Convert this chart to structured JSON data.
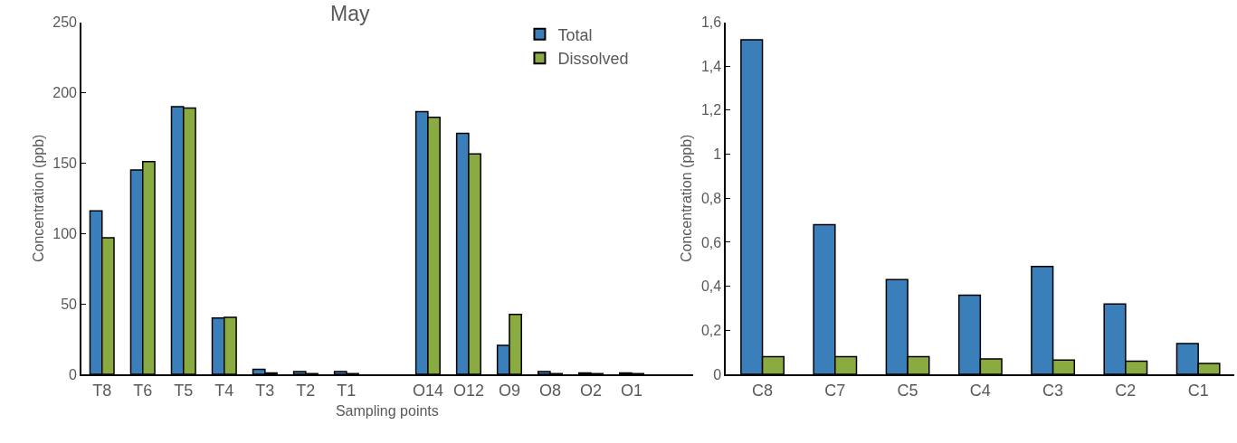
{
  "chart_data": [
    {
      "type": "bar",
      "title": "May",
      "xlabel": "Sampling points",
      "ylabel": "Concentration (ppb)",
      "categories": [
        "T8",
        "T6",
        "T5",
        "T4",
        "T3",
        "T2",
        "T1",
        null,
        "O14",
        "O12",
        "O9",
        "O8",
        "O2",
        "O1",
        null
      ],
      "series": [
        {
          "name": "Total",
          "color": "#3a7fba",
          "values": [
            116,
            145,
            190,
            40,
            3.5,
            2,
            2,
            null,
            186.5,
            171,
            20.5,
            2,
            1,
            1,
            null
          ]
        },
        {
          "name": "Dissolved",
          "color": "#8aab42",
          "values": [
            97,
            151,
            189,
            40.5,
            1,
            0.5,
            0.5,
            null,
            182.5,
            156.5,
            42.5,
            0.5,
            0.5,
            0.5,
            null
          ]
        }
      ],
      "ylim": [
        0,
        250
      ],
      "yticks": [
        0,
        50,
        100,
        150,
        200,
        250
      ],
      "legend": "top right"
    },
    {
      "type": "bar",
      "ylabel": "Concentration (ppb)",
      "categories": [
        "C8",
        "C7",
        "C5",
        "C4",
        "C3",
        "C2",
        "C1"
      ],
      "series": [
        {
          "color": "#3a7fba",
          "values": [
            1.52,
            0.68,
            0.43,
            0.36,
            0.49,
            0.32,
            0.14
          ]
        },
        {
          "color": "#8aab42",
          "values": [
            0.08,
            0.08,
            0.08,
            0.07,
            0.065,
            0.06,
            0.05
          ]
        }
      ],
      "ylim": [
        0,
        1.6
      ],
      "yticks": [
        0,
        {
          "value": 0.2,
          "label": "0,2"
        },
        {
          "value": 0.4,
          "label": "0,4"
        },
        {
          "value": 0.6,
          "label": "0,6"
        },
        {
          "value": 0.8,
          "label": "0,8"
        },
        1,
        {
          "value": 1.2,
          "label": "1,2"
        },
        {
          "value": 1.4,
          "label": "1,4"
        },
        {
          "value": 1.6,
          "label": "1,6"
        }
      ]
    }
  ]
}
